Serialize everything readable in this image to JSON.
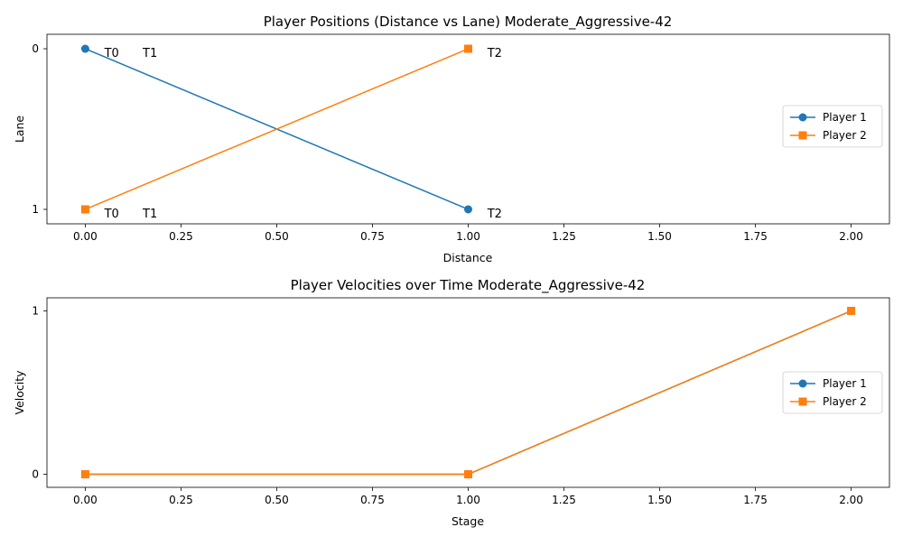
{
  "chart_data": [
    {
      "type": "line",
      "title": "Player Positions (Distance vs Lane) Moderate_Aggressive-42",
      "xlabel": "Distance",
      "ylabel": "Lane",
      "xlim": [
        -0.1,
        2.1
      ],
      "ylim": [
        1.09,
        -0.09
      ],
      "y_inverted": true,
      "xticks": [
        0.0,
        0.25,
        0.5,
        0.75,
        1.0,
        1.25,
        1.5,
        1.75,
        2.0
      ],
      "xtick_labels": [
        "0.00",
        "0.25",
        "0.50",
        "0.75",
        "1.00",
        "1.25",
        "1.50",
        "1.75",
        "2.00"
      ],
      "yticks": [
        0,
        1
      ],
      "ytick_labels": [
        "0",
        "1"
      ],
      "legend": "center-right",
      "series": [
        {
          "name": "Player 1",
          "color": "#1f77b4",
          "marker": "circle",
          "x": [
            0,
            1
          ],
          "y": [
            0,
            1
          ]
        },
        {
          "name": "Player 2",
          "color": "#ff7f0e",
          "marker": "square",
          "x": [
            0,
            1
          ],
          "y": [
            1,
            0
          ]
        }
      ],
      "annotations": [
        {
          "text": "T0",
          "x": 0.05,
          "y": 0
        },
        {
          "text": "T1",
          "x": 0.15,
          "y": 0
        },
        {
          "text": "T2",
          "x": 1.05,
          "y": 0
        },
        {
          "text": "T0",
          "x": 0.05,
          "y": 1
        },
        {
          "text": "T1",
          "x": 0.15,
          "y": 1
        },
        {
          "text": "T2",
          "x": 1.05,
          "y": 1
        }
      ]
    },
    {
      "type": "line",
      "title": "Player Velocities over Time Moderate_Aggressive-42",
      "xlabel": "Stage",
      "ylabel": "Velocity",
      "xlim": [
        -0.1,
        2.1
      ],
      "ylim": [
        -0.08,
        1.08
      ],
      "y_inverted": false,
      "xticks": [
        0.0,
        0.25,
        0.5,
        0.75,
        1.0,
        1.25,
        1.5,
        1.75,
        2.0
      ],
      "xtick_labels": [
        "0.00",
        "0.25",
        "0.50",
        "0.75",
        "1.00",
        "1.25",
        "1.50",
        "1.75",
        "2.00"
      ],
      "yticks": [
        0,
        1
      ],
      "ytick_labels": [
        "0",
        "1"
      ],
      "legend": "center-right",
      "series": [
        {
          "name": "Player 1",
          "color": "#1f77b4",
          "marker": "circle",
          "x": [
            0,
            1,
            2
          ],
          "y": [
            0,
            0,
            1
          ]
        },
        {
          "name": "Player 2",
          "color": "#ff7f0e",
          "marker": "square",
          "x": [
            0,
            1,
            2
          ],
          "y": [
            0,
            0,
            1
          ]
        }
      ],
      "annotations": []
    }
  ]
}
